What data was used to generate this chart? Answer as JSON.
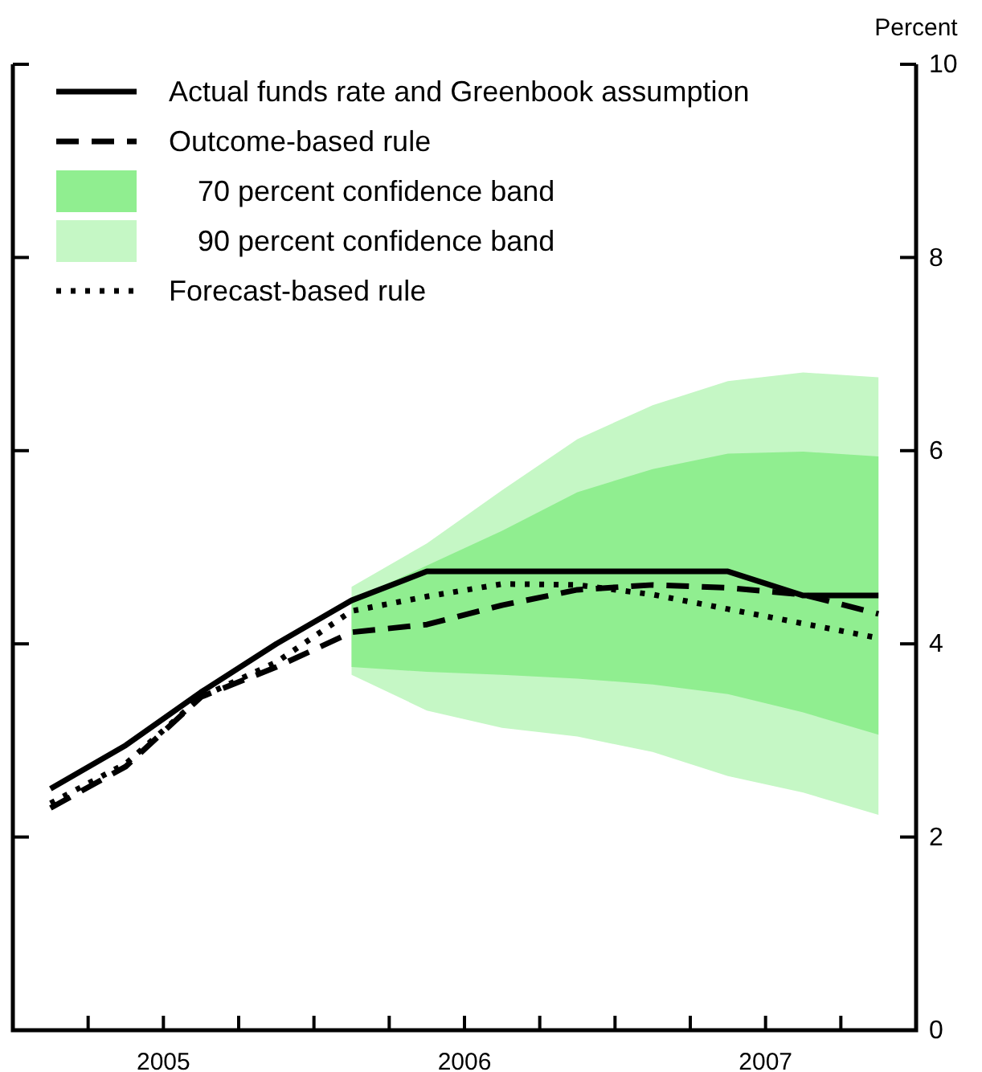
{
  "chart_data": {
    "type": "line",
    "ylabel": "Percent",
    "xlim": [
      2005,
      2008
    ],
    "xticks": [
      {
        "value": 2005.25,
        "label": null
      },
      {
        "value": 2005.5,
        "label": "2005"
      },
      {
        "value": 2005.75,
        "label": null
      },
      {
        "value": 2006,
        "label": null
      },
      {
        "value": 2006.25,
        "label": null
      },
      {
        "value": 2006.5,
        "label": "2006"
      },
      {
        "value": 2006.75,
        "label": null
      },
      {
        "value": 2007,
        "label": null
      },
      {
        "value": 2007.25,
        "label": null
      },
      {
        "value": 2007.5,
        "label": "2007"
      },
      {
        "value": 2007.75,
        "label": null
      }
    ],
    "ylim": [
      0,
      10
    ],
    "yticks": [
      0,
      2,
      4,
      6,
      8,
      10
    ],
    "grid": false,
    "legend": "top left",
    "series": [
      {
        "name": "Actual funds rate and Greenbook assumption",
        "line_style": "solid",
        "color": "#000000",
        "x": [
          2005.125,
          2005.375,
          2005.625,
          2005.875,
          2006.125,
          2006.375,
          2006.625,
          2006.875,
          2007.125,
          2007.375,
          2007.625,
          2007.875
        ],
        "values": [
          2.5,
          2.95,
          3.5,
          4.0,
          4.45,
          4.75,
          4.75,
          4.75,
          4.75,
          4.75,
          4.5,
          4.5
        ]
      },
      {
        "name": "Outcome-based rule",
        "line_style": "dashed",
        "color": "#000000",
        "x": [
          2005.125,
          2005.375,
          2005.625,
          2005.875,
          2006.125,
          2006.375,
          2006.625,
          2006.875,
          2007.125,
          2007.375,
          2007.625,
          2007.875
        ],
        "values": [
          2.3,
          2.73,
          3.45,
          3.76,
          4.12,
          4.2,
          4.4,
          4.56,
          4.61,
          4.58,
          4.51,
          4.31
        ]
      },
      {
        "name": "70 percent confidence band",
        "type": "area",
        "color": "#90ee90",
        "x": [
          2006.125,
          2006.375,
          2006.625,
          2006.875,
          2007.125,
          2007.375,
          2007.625,
          2007.875
        ],
        "values": [
          null,
          null,
          null,
          null,
          null,
          null,
          null,
          null
        ],
        "lower": [
          3.76,
          3.71,
          3.68,
          3.64,
          3.58,
          3.48,
          3.29,
          3.06
        ],
        "upper": [
          4.45,
          4.81,
          5.17,
          5.57,
          5.81,
          5.97,
          5.99,
          5.94
        ]
      },
      {
        "name": "90 percent confidence band",
        "type": "area",
        "color": "#c5f7c5",
        "x": [
          2006.125,
          2006.375,
          2006.625,
          2006.875,
          2007.125,
          2007.375,
          2007.625,
          2007.875
        ],
        "values": [
          null,
          null,
          null,
          null,
          null,
          null,
          null,
          null
        ],
        "lower": [
          3.68,
          3.31,
          3.13,
          3.04,
          2.88,
          2.63,
          2.46,
          2.23
        ],
        "upper": [
          4.59,
          5.04,
          5.59,
          6.12,
          6.47,
          6.72,
          6.81,
          6.76
        ]
      },
      {
        "name": "Forecast-based rule",
        "line_style": "dotted",
        "color": "#000000",
        "x": [
          2005.125,
          2005.375,
          2005.625,
          2005.875,
          2006.125,
          2006.375,
          2006.625,
          2006.875,
          2007.125,
          2007.375,
          2007.625,
          2007.875
        ],
        "values": [
          2.35,
          2.76,
          3.45,
          3.81,
          4.34,
          4.49,
          4.62,
          4.61,
          4.51,
          4.36,
          4.21,
          4.06
        ]
      }
    ]
  }
}
